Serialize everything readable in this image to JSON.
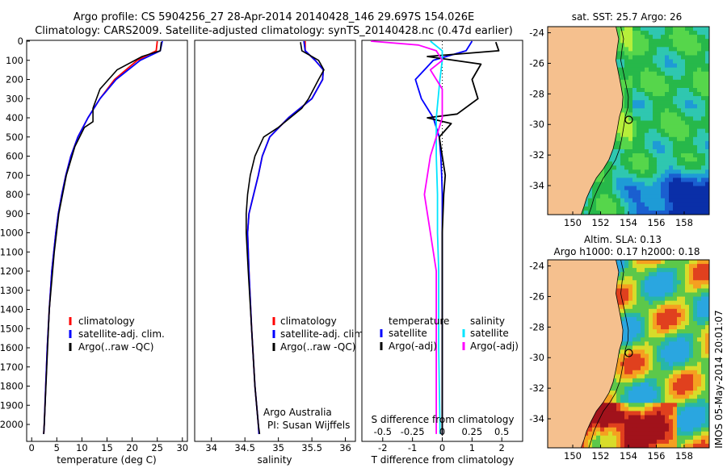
{
  "header": {
    "line1": "Argo profile: CS 5904256_27 28-Apr-2014 20140428_146 29.697S 154.026E",
    "line2": "Climatology: CARS2009. Satellite-adjusted climatology: synTS_20140428.nc (0.47d earlier)"
  },
  "side_label": "IMOS 05-May-2014 20:01:07",
  "depth_ticks": [
    "0",
    "100",
    "200",
    "300",
    "400",
    "500",
    "600",
    "700",
    "800",
    "900",
    "1000",
    "1100",
    "1200",
    "1300",
    "1400",
    "1500",
    "1600",
    "1700",
    "1800",
    "1900",
    "2000"
  ],
  "colors": {
    "climatology": "#ff0000",
    "satellite": "#0000ff",
    "argo": "#000000",
    "sal_sat": "#00e5ff",
    "sal_argo": "#ff00ff",
    "land": "#f5c08e"
  },
  "legend_labels": {
    "climatology": "climatology",
    "satellite": "satellite-adj. clim.",
    "argo": "Argo(..raw -QC)"
  },
  "legend_diff": {
    "temp_head": "temperature",
    "sal_head": "salinity",
    "temp_sat": "satellite",
    "temp_argo": "Argo(-adj)",
    "sal_sat": "satellite",
    "sal_argo": "Argo(-adj)"
  },
  "attribution": {
    "l1": "Argo Australia",
    "l2": "PI: Susan Wijffels"
  },
  "maps": {
    "sst_title": "sat. SST: 25.7 Argo: 26",
    "sla_title1": "Altim. SLA: 0.13",
    "sla_title2": "Argo h1000: 0.17 h2000: 0.18",
    "lat_ticks": [
      "-24",
      "-26",
      "-28",
      "-30",
      "-32",
      "-34"
    ],
    "lon_ticks": [
      "150",
      "152",
      "154",
      "156",
      "158"
    ]
  },
  "chart_data": [
    {
      "type": "line",
      "xlabel": "temperature (deg C)",
      "ylabel": "",
      "xlim": [
        -1,
        31
      ],
      "ylim": [
        2080,
        0
      ],
      "xticks": [
        "0",
        "5",
        "10",
        "15",
        "20",
        "25",
        "30"
      ],
      "series": [
        {
          "name": "climatology",
          "depth": [
            0,
            50,
            100,
            200,
            300,
            400,
            500,
            600,
            700,
            800,
            900,
            1000,
            1200,
            1400,
            1600,
            1800,
            2000,
            2050
          ],
          "values": [
            25,
            24.8,
            21,
            16.5,
            13.6,
            11.2,
            9.2,
            7.8,
            6.8,
            6.0,
            5.3,
            4.8,
            4.0,
            3.5,
            3.1,
            2.8,
            2.5,
            2.4
          ]
        },
        {
          "name": "satellite-adj. clim.",
          "depth": [
            0,
            50,
            100,
            200,
            300,
            400,
            500,
            600,
            700,
            800,
            900,
            1000,
            1200,
            1400,
            1600,
            1800,
            2000,
            2050
          ],
          "values": [
            26,
            25.6,
            21.6,
            16.8,
            13.6,
            11.2,
            9.2,
            7.8,
            6.8,
            6.0,
            5.3,
            4.8,
            4.0,
            3.5,
            3.1,
            2.8,
            2.5,
            2.4
          ]
        },
        {
          "name": "Argo(..raw -QC)",
          "depth": [
            5,
            50,
            80,
            150,
            250,
            350,
            420,
            450,
            550,
            700,
            900,
            1100,
            1400,
            1700,
            2000,
            2050
          ],
          "values": [
            25.8,
            25.6,
            22,
            17,
            13.6,
            12.2,
            12.2,
            10.5,
            8.6,
            6.9,
            5.4,
            4.5,
            3.5,
            3.0,
            2.5,
            2.4
          ]
        }
      ]
    },
    {
      "type": "line",
      "xlabel": "salinity",
      "ylabel": "",
      "xlim": [
        33.75,
        36.15
      ],
      "ylim": [
        2080,
        0
      ],
      "xticks": [
        "34",
        "34.5",
        "35",
        "35.5",
        "36"
      ],
      "series": [
        {
          "name": "climatology",
          "depth": [
            0,
            50,
            100,
            150,
            200,
            300,
            400,
            500,
            600,
            700,
            800,
            900,
            1000,
            1200,
            1500,
            1800,
            2000,
            2050
          ],
          "values": [
            35.4,
            35.4,
            35.55,
            35.67,
            35.66,
            35.5,
            35.15,
            34.87,
            34.76,
            34.7,
            34.63,
            34.56,
            34.54,
            34.56,
            34.6,
            34.65,
            34.7,
            34.71
          ]
        },
        {
          "name": "satellite-adj. clim.",
          "depth": [
            0,
            50,
            100,
            150,
            200,
            300,
            400,
            500,
            600,
            700,
            800,
            900,
            1000,
            1200,
            1500,
            1800,
            2000,
            2050
          ],
          "values": [
            35.38,
            35.4,
            35.55,
            35.67,
            35.66,
            35.5,
            35.15,
            34.87,
            34.76,
            34.7,
            34.63,
            34.56,
            34.54,
            34.56,
            34.6,
            34.65,
            34.7,
            34.71
          ]
        },
        {
          "name": "Argo(..raw -QC)",
          "depth": [
            5,
            50,
            100,
            150,
            200,
            300,
            350,
            450,
            500,
            600,
            700,
            800,
            900,
            1000,
            1200,
            1500,
            1800,
            2000,
            2050
          ],
          "values": [
            35.33,
            35.35,
            35.6,
            35.68,
            35.6,
            35.45,
            35.35,
            35.0,
            34.78,
            34.65,
            34.58,
            34.54,
            34.52,
            34.52,
            34.55,
            34.6,
            34.65,
            34.7,
            34.72
          ]
        }
      ]
    },
    {
      "type": "line",
      "xlabel": "T difference from climatology",
      "ylabel": "",
      "xlim": [
        -2.7,
        2.7
      ],
      "ylim": [
        2080,
        0
      ],
      "xticks": [
        "-2",
        "-1",
        "0",
        "1",
        "2"
      ],
      "xlabel_top": "S difference from climatology",
      "xticks_top": [
        "-0.5",
        "-0.25",
        "0",
        "0.25",
        "0.5"
      ],
      "series": [
        {
          "name": "temperature satellite",
          "depth": [
            0,
            50,
            100,
            150,
            200,
            300,
            400,
            500,
            600,
            700,
            800,
            1000,
            1200,
            1600,
            2000,
            2050
          ],
          "values": [
            1.0,
            0.8,
            -0.3,
            -0.6,
            -0.9,
            -0.7,
            -0.3,
            -0.1,
            -0.05,
            -0.02,
            0,
            0,
            0,
            0,
            0,
            0
          ]
        },
        {
          "name": "temperature Argo(-adj)",
          "depth": [
            5,
            50,
            80,
            120,
            200,
            300,
            380,
            400,
            430,
            500,
            600,
            700,
            800,
            1000,
            1200,
            1600,
            2000,
            2050
          ],
          "values": [
            1.8,
            1.9,
            -0.5,
            1.3,
            1.0,
            1.2,
            0.5,
            -0.5,
            0.3,
            -0.1,
            0.0,
            0.1,
            0.05,
            0.0,
            0.0,
            0.0,
            0.0,
            0.0
          ]
        },
        {
          "name": "salinity satellite",
          "depth": [
            0,
            50,
            100,
            200,
            400,
            600,
            800,
            1000,
            1200,
            1600,
            2000,
            2050
          ],
          "values": [
            -0.1,
            0.0,
            0.0,
            -0.02,
            -0.05,
            -0.05,
            -0.04,
            -0.04,
            -0.03,
            -0.03,
            -0.02,
            -0.02
          ]
        },
        {
          "name": "salinity Argo(-adj)",
          "depth": [
            0,
            20,
            50,
            100,
            150,
            250,
            400,
            500,
            600,
            800,
            1000,
            1200,
            1600,
            2000,
            2050
          ],
          "values": [
            -0.6,
            -0.2,
            -0.05,
            0.0,
            -0.1,
            0.0,
            0.0,
            -0.05,
            -0.1,
            -0.15,
            -0.1,
            -0.05,
            -0.05,
            -0.05,
            -0.05
          ]
        }
      ]
    }
  ]
}
